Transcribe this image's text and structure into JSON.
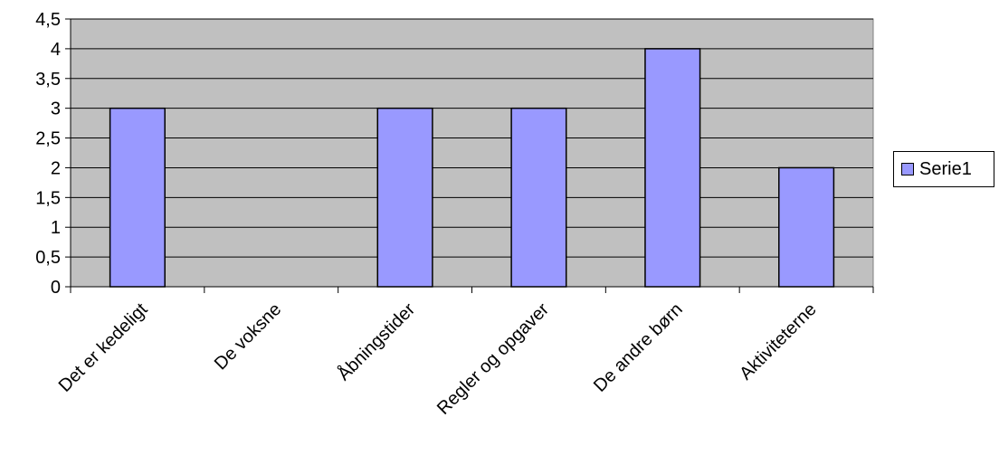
{
  "colors": {
    "plot_bg": "#c0c0c0",
    "bar_fill": "#9999ff",
    "bar_stroke": "#000000",
    "grid": "#000000"
  },
  "chart_data": {
    "type": "bar",
    "categories": [
      "Det er kedeligt",
      "De voksne",
      "Åbningstider",
      "Regler og opgaver",
      "De andre børn",
      "Aktiviteterne"
    ],
    "series": [
      {
        "name": "Serie1",
        "values": [
          3,
          0,
          3,
          3,
          4,
          2
        ]
      }
    ],
    "ylim": [
      0,
      4.5
    ],
    "yticks": [
      "0",
      "0,5",
      "1",
      "1,5",
      "2",
      "2,5",
      "3",
      "3,5",
      "4",
      "4,5"
    ],
    "title": "",
    "xlabel": "",
    "ylabel": "",
    "grid": true,
    "legend": "right"
  }
}
